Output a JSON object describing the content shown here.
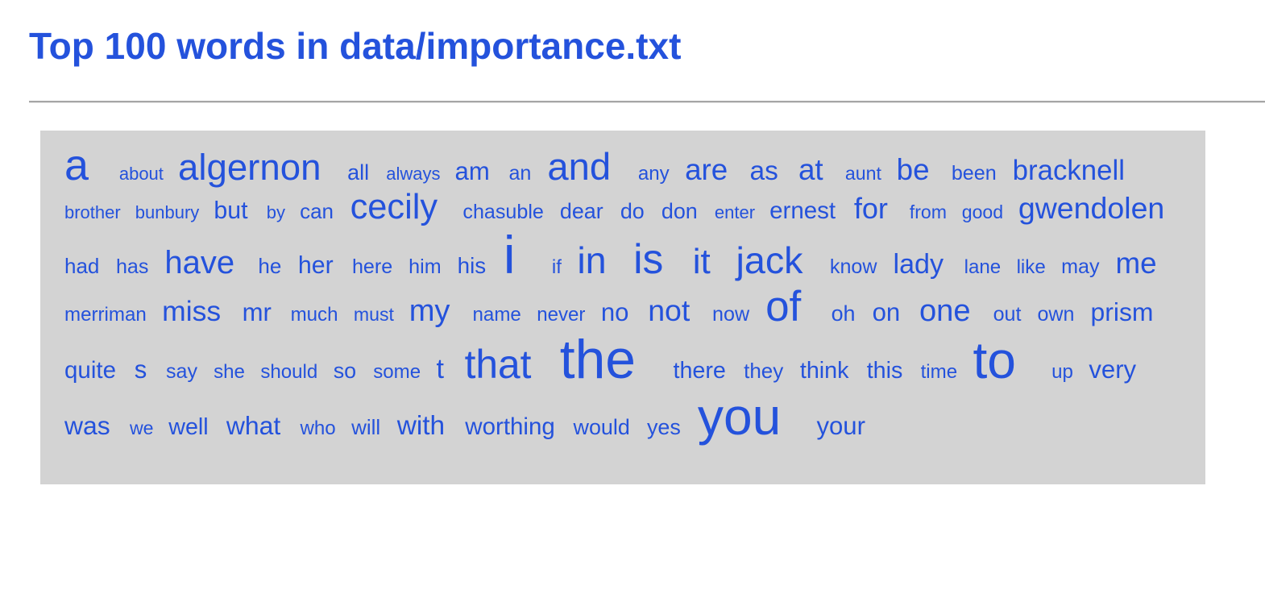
{
  "page": {
    "title": "Top 100 words in data/importance.txt"
  },
  "colors": {
    "text": "#2452dc",
    "cloud_background": "#d3d3d3",
    "rule": "#a6a6a6"
  },
  "word_cloud": {
    "words": [
      {
        "text": "a",
        "weight": 6
      },
      {
        "text": "about",
        "weight": 1
      },
      {
        "text": "algernon",
        "weight": 4.3
      },
      {
        "text": "all",
        "weight": 1.5
      },
      {
        "text": "always",
        "weight": 1
      },
      {
        "text": "am",
        "weight": 2
      },
      {
        "text": "an",
        "weight": 1.3
      },
      {
        "text": "and",
        "weight": 4.6
      },
      {
        "text": "any",
        "weight": 1.2
      },
      {
        "text": "are",
        "weight": 2.8
      },
      {
        "text": "as",
        "weight": 2.3
      },
      {
        "text": "at",
        "weight": 2.8
      },
      {
        "text": "aunt",
        "weight": 1.1
      },
      {
        "text": "be",
        "weight": 2.8
      },
      {
        "text": "been",
        "weight": 1.3
      },
      {
        "text": "bracknell",
        "weight": 2.5
      },
      {
        "text": "brother",
        "weight": 1
      },
      {
        "text": "bunbury",
        "weight": 1
      },
      {
        "text": "but",
        "weight": 1.9
      },
      {
        "text": "by",
        "weight": 1
      },
      {
        "text": "can",
        "weight": 1.4
      },
      {
        "text": "cecily",
        "weight": 3.9
      },
      {
        "text": "chasuble",
        "weight": 1.3
      },
      {
        "text": "dear",
        "weight": 1.5
      },
      {
        "text": "do",
        "weight": 1.5
      },
      {
        "text": "don",
        "weight": 1.5
      },
      {
        "text": "enter",
        "weight": 1
      },
      {
        "text": "ernest",
        "weight": 1.8
      },
      {
        "text": "for",
        "weight": 2.7
      },
      {
        "text": "from",
        "weight": 1.1
      },
      {
        "text": "good",
        "weight": 1.1
      },
      {
        "text": "gwendolen",
        "weight": 2.9
      },
      {
        "text": "had",
        "weight": 1.4
      },
      {
        "text": "has",
        "weight": 1.3
      },
      {
        "text": "have",
        "weight": 3.3
      },
      {
        "text": "he",
        "weight": 1.4
      },
      {
        "text": "her",
        "weight": 1.9
      },
      {
        "text": "here",
        "weight": 1.3
      },
      {
        "text": "him",
        "weight": 1.3
      },
      {
        "text": "his",
        "weight": 1.6
      },
      {
        "text": "i",
        "weight": 9
      },
      {
        "text": "if",
        "weight": 1.2
      },
      {
        "text": "in",
        "weight": 4.5
      },
      {
        "text": "is",
        "weight": 5.5
      },
      {
        "text": "it",
        "weight": 4
      },
      {
        "text": "jack",
        "weight": 4.5
      },
      {
        "text": "know",
        "weight": 1.3
      },
      {
        "text": "lady",
        "weight": 2.4
      },
      {
        "text": "lane",
        "weight": 1.2
      },
      {
        "text": "like",
        "weight": 1.2
      },
      {
        "text": "may",
        "weight": 1.3
      },
      {
        "text": "me",
        "weight": 2.8
      },
      {
        "text": "merriman",
        "weight": 1.2
      },
      {
        "text": "miss",
        "weight": 2.6
      },
      {
        "text": "mr",
        "weight": 2
      },
      {
        "text": "much",
        "weight": 1.2
      },
      {
        "text": "must",
        "weight": 1.1
      },
      {
        "text": "my",
        "weight": 3
      },
      {
        "text": "name",
        "weight": 1.2
      },
      {
        "text": "never",
        "weight": 1.2
      },
      {
        "text": "no",
        "weight": 2
      },
      {
        "text": "not",
        "weight": 2.9
      },
      {
        "text": "now",
        "weight": 1.3
      },
      {
        "text": "of",
        "weight": 5.8
      },
      {
        "text": "oh",
        "weight": 1.5
      },
      {
        "text": "on",
        "weight": 2
      },
      {
        "text": "one",
        "weight": 3
      },
      {
        "text": "out",
        "weight": 1.3
      },
      {
        "text": "own",
        "weight": 1.3
      },
      {
        "text": "prism",
        "weight": 2.1
      },
      {
        "text": "quite",
        "weight": 1.8
      },
      {
        "text": "s",
        "weight": 2
      },
      {
        "text": "say",
        "weight": 1.3
      },
      {
        "text": "she",
        "weight": 1.2
      },
      {
        "text": "should",
        "weight": 1.2
      },
      {
        "text": "so",
        "weight": 1.5
      },
      {
        "text": "some",
        "weight": 1.2
      },
      {
        "text": "t",
        "weight": 2.4
      },
      {
        "text": "that",
        "weight": 5.1
      },
      {
        "text": "the",
        "weight": 9.5
      },
      {
        "text": "there",
        "weight": 1.7
      },
      {
        "text": "they",
        "weight": 1.4
      },
      {
        "text": "think",
        "weight": 1.7
      },
      {
        "text": "this",
        "weight": 1.7
      },
      {
        "text": "time",
        "weight": 1.2
      },
      {
        "text": "to",
        "weight": 8.5
      },
      {
        "text": "up",
        "weight": 1.2
      },
      {
        "text": "very",
        "weight": 2
      },
      {
        "text": "was",
        "weight": 2.1
      },
      {
        "text": "we",
        "weight": 1.1
      },
      {
        "text": "well",
        "weight": 1.7
      },
      {
        "text": "what",
        "weight": 2.1
      },
      {
        "text": "who",
        "weight": 1.2
      },
      {
        "text": "will",
        "weight": 1.4
      },
      {
        "text": "with",
        "weight": 2.3
      },
      {
        "text": "worthing",
        "weight": 1.8
      },
      {
        "text": "would",
        "weight": 1.5
      },
      {
        "text": "yes",
        "weight": 1.5
      },
      {
        "text": "you",
        "weight": 8.5
      },
      {
        "text": "your",
        "weight": 2
      }
    ]
  }
}
